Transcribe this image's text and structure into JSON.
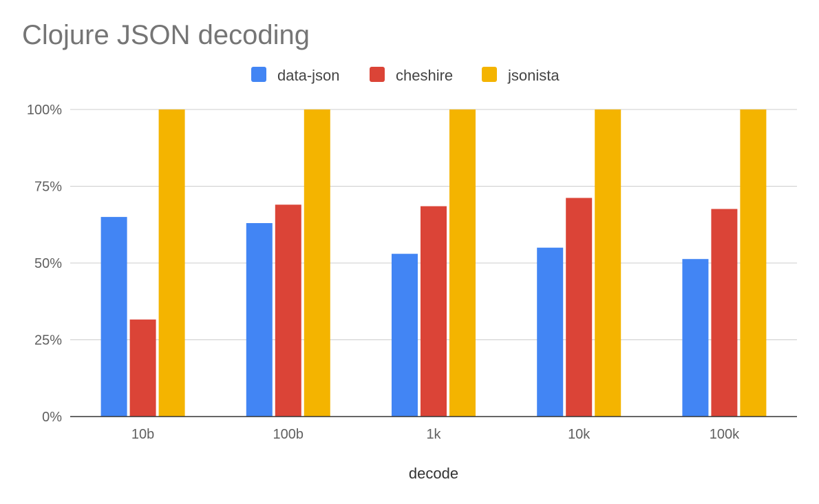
{
  "chart_data": {
    "type": "bar",
    "title": "Clojure JSON decoding",
    "xlabel": "decode",
    "ylabel": "",
    "categories": [
      "10b",
      "100b",
      "1k",
      "10k",
      "100k"
    ],
    "series": [
      {
        "name": "data-json",
        "color": "#4285f4",
        "values": [
          65,
          63,
          53,
          55,
          51.3
        ]
      },
      {
        "name": "cheshire",
        "color": "#db4437",
        "values": [
          31.6,
          69,
          68.5,
          71.2,
          67.6
        ]
      },
      {
        "name": "jsonista",
        "color": "#f4b400",
        "values": [
          100,
          100,
          100,
          100,
          100
        ]
      }
    ],
    "ylim": [
      0,
      100
    ],
    "yticks": [
      0,
      25,
      50,
      75,
      100
    ],
    "ytick_labels": [
      "0%",
      "25%",
      "50%",
      "75%",
      "100%"
    ],
    "grid": true,
    "legend_position": "top-center"
  }
}
